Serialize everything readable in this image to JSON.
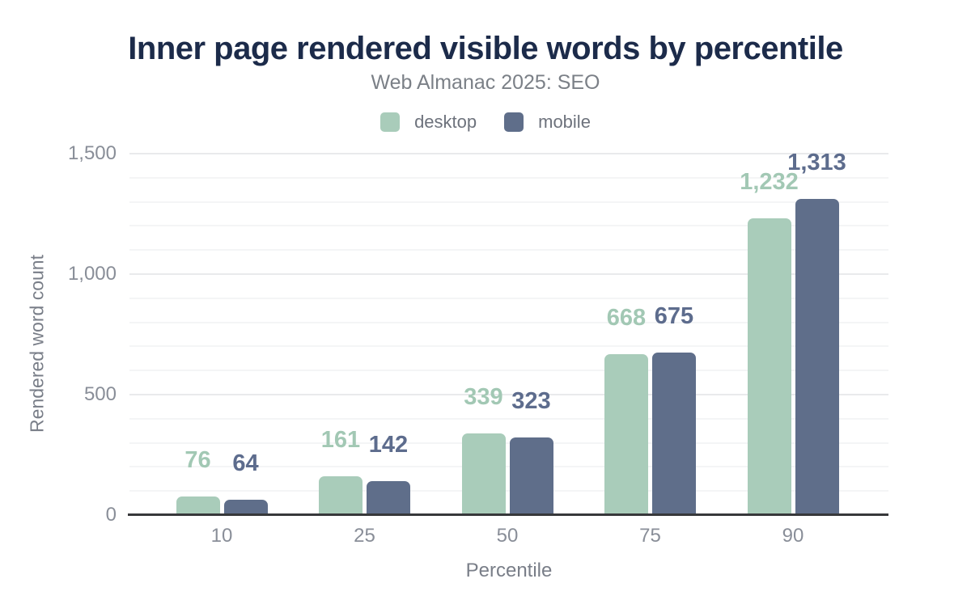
{
  "chart_data": {
    "type": "bar",
    "title": "Inner page rendered visible words by percentile",
    "subtitle": "Web Almanac 2025: SEO",
    "xlabel": "Percentile",
    "ylabel": "Rendered word count",
    "categories": [
      "10",
      "25",
      "50",
      "75",
      "90"
    ],
    "series": [
      {
        "name": "desktop",
        "color": "#a9ccba",
        "label_color": "#a2c8b4",
        "values": [
          76,
          161,
          339,
          668,
          1232
        ]
      },
      {
        "name": "mobile",
        "color": "#5f6e8a",
        "label_color": "#5d6c8d",
        "values": [
          64,
          142,
          323,
          675,
          1313
        ]
      }
    ],
    "ylim": [
      0,
      1500
    ],
    "yticks": [
      0,
      500,
      1000,
      1500
    ],
    "ytick_labels": [
      "0",
      "500",
      "1,000",
      "1,500"
    ],
    "minor_grid_step": 100,
    "grid": true,
    "legend_position": "top",
    "value_labels_shown": true
  },
  "colors": {
    "title": "#1c2b4a",
    "subtitle": "#7b8087",
    "legend_text": "#6d727c",
    "tick_text": "#898e98",
    "axis_title_text": "#797e88",
    "axis_line": "#37383b",
    "major_grid": "#e9eaec",
    "minor_grid": "#f4f5f6",
    "background": "#ffffff"
  }
}
